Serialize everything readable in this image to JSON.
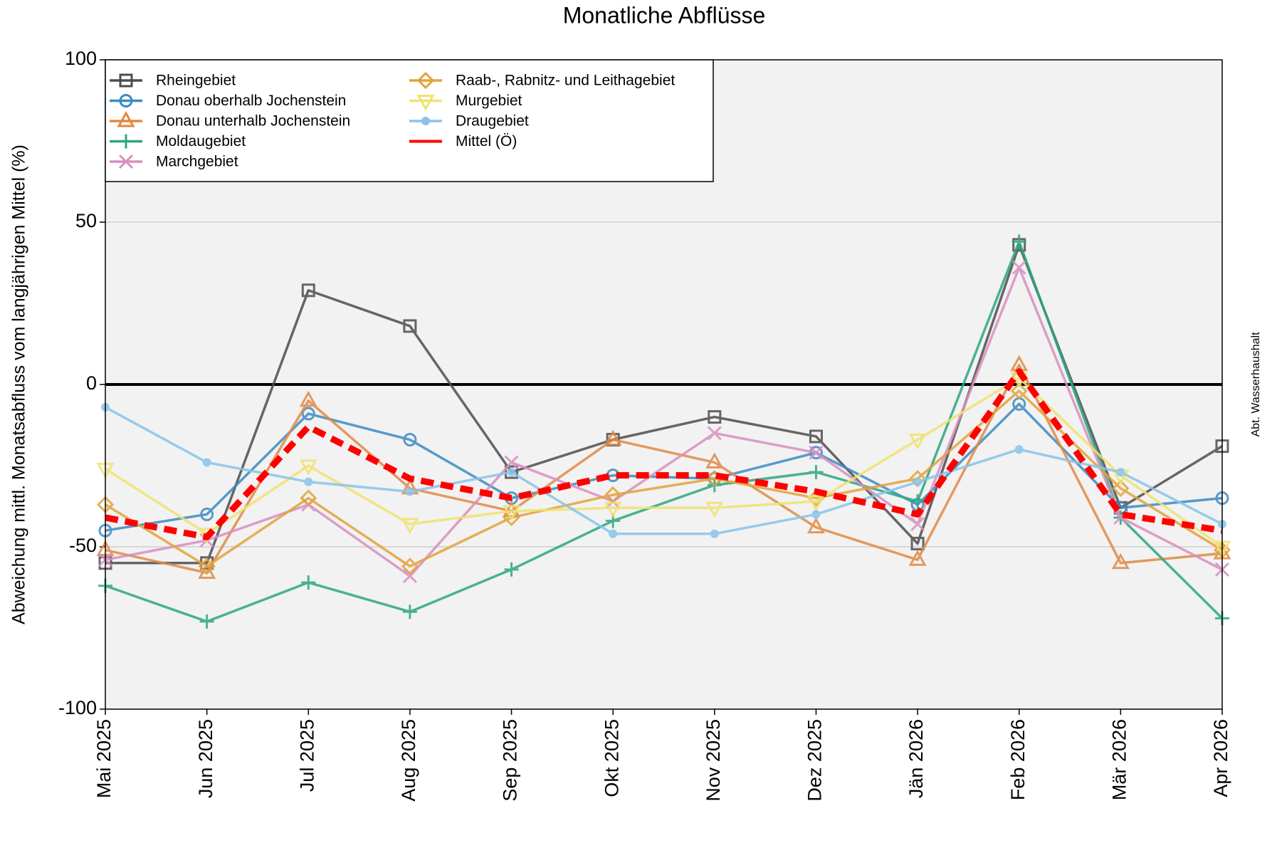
{
  "chart_data": {
    "type": "line",
    "title": "Monatliche Abflüsse",
    "y_label": "Abweichung mittl. Monatsabfluss vom langjährigen Mittel (%)",
    "annotation": "Abt. Wasserhaushalt",
    "categories": [
      "Mai 2025",
      "Jun 2025",
      "Jul 2025",
      "Aug 2025",
      "Sep 2025",
      "Okt 2025",
      "Nov 2025",
      "Dez 2025",
      "Jän 2026",
      "Feb 2026",
      "Mär 2026",
      "Apr 2026"
    ],
    "ylim": [
      -100,
      100
    ],
    "yticks": [
      -100,
      -50,
      0,
      50,
      100
    ],
    "grid": true,
    "legend": "upper left",
    "series": [
      {
        "name": "Rheingebiet",
        "color": "#4d4d4d",
        "marker": "square",
        "values": [
          -55,
          -55,
          29,
          18,
          -27,
          -17,
          -10,
          -16,
          -49,
          43,
          -38,
          -19
        ]
      },
      {
        "name": "Donau oberhalb Jochenstein",
        "color": "#3b8bc2",
        "marker": "circle",
        "values": [
          -45,
          -40,
          -9,
          -17,
          -35,
          -28,
          -29,
          -21,
          -37,
          -6,
          -38,
          -35
        ]
      },
      {
        "name": "Donau unterhalb Jochenstein",
        "color": "#e08a45",
        "marker": "triangle-up",
        "values": [
          -51,
          -58,
          -5,
          -32,
          -39,
          -17,
          -24,
          -44,
          -54,
          6,
          -55,
          -52
        ]
      },
      {
        "name": "Moldaugebiet",
        "color": "#2ca77f",
        "marker": "plus",
        "values": [
          -62,
          -73,
          -61,
          -70,
          -57,
          -42,
          -31,
          -27,
          -36,
          44,
          -41,
          -72
        ]
      },
      {
        "name": "Marchgebiet",
        "color": "#d98fc0",
        "marker": "x",
        "values": [
          -54,
          -48,
          -37,
          -59,
          -24,
          -36,
          -15,
          -21,
          -43,
          36,
          -41,
          -57
        ]
      },
      {
        "name": "Raab-, Rabnitz- und Leithagebiet",
        "color": "#e3a33a",
        "marker": "diamond",
        "values": [
          -37,
          -56,
          -35,
          -56,
          -41,
          -34,
          -29,
          -35,
          -29,
          -2,
          -32,
          -51
        ]
      },
      {
        "name": "Murgebiet",
        "color": "#f0e270",
        "marker": "triangle-down",
        "values": [
          -26,
          -46,
          -25,
          -43,
          -39,
          -38,
          -38,
          -36,
          -17,
          2,
          -28,
          -50
        ]
      },
      {
        "name": "Draugebiet",
        "color": "#88c4ea",
        "marker": "dot",
        "values": [
          -7,
          -24,
          -30,
          -33,
          -27,
          -46,
          -46,
          -40,
          -30,
          -20,
          -27,
          -43
        ]
      },
      {
        "name": "Mittel (Ö)",
        "color": "#ff0000",
        "marker": "none",
        "dashed": true,
        "values": [
          -41,
          -47,
          -13,
          -29,
          -35,
          -28,
          -28,
          -33,
          -40,
          4,
          -40,
          -45
        ]
      }
    ]
  }
}
